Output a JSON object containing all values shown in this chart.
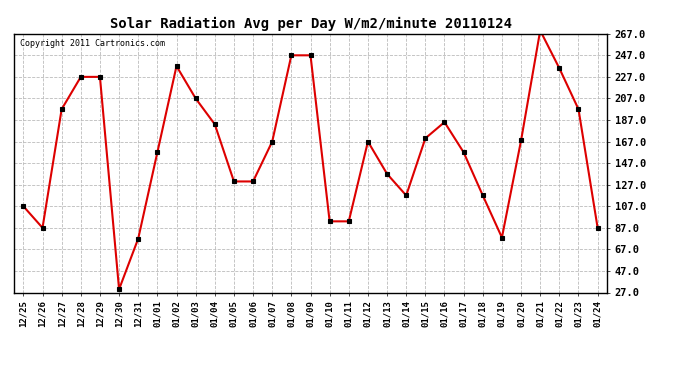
{
  "title": "Solar Radiation Avg per Day W/m2/minute 20110124",
  "copyright": "Copyright 2011 Cartronics.com",
  "dates": [
    "12/25",
    "12/26",
    "12/27",
    "12/28",
    "12/29",
    "12/30",
    "12/31",
    "01/01",
    "01/02",
    "01/03",
    "01/04",
    "01/05",
    "01/06",
    "01/07",
    "01/08",
    "01/09",
    "01/10",
    "01/11",
    "01/12",
    "01/13",
    "01/14",
    "01/15",
    "01/16",
    "01/17",
    "01/18",
    "01/19",
    "01/20",
    "01/21",
    "01/22",
    "01/23",
    "01/24"
  ],
  "values": [
    107,
    87,
    197,
    227,
    227,
    30,
    77,
    157,
    237,
    207,
    183,
    130,
    130,
    167,
    247,
    247,
    93,
    93,
    167,
    137,
    117,
    170,
    185,
    157,
    117,
    78,
    168,
    270,
    235,
    197,
    87
  ],
  "line_color": "#dd0000",
  "marker_color": "#000000",
  "bg_color": "#ffffff",
  "grid_color": "#bbbbbb",
  "ylim_min": 27.0,
  "ylim_max": 267.0,
  "yticks": [
    27.0,
    47.0,
    67.0,
    87.0,
    107.0,
    127.0,
    147.0,
    167.0,
    187.0,
    207.0,
    227.0,
    247.0,
    267.0
  ]
}
